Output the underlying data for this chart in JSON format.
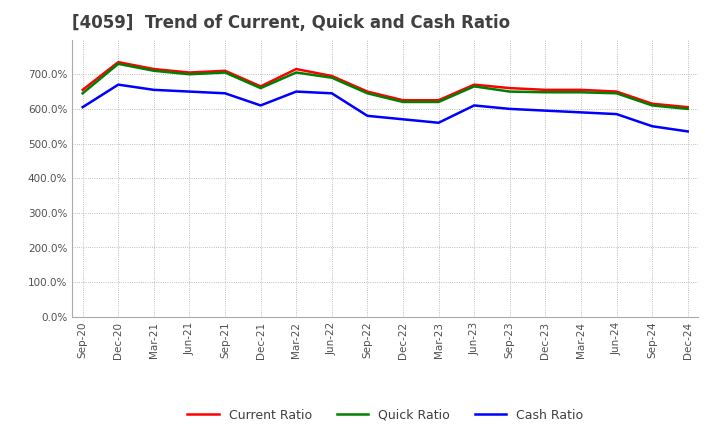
{
  "title": "[4059]  Trend of Current, Quick and Cash Ratio",
  "x_labels": [
    "Sep-20",
    "Dec-20",
    "Mar-21",
    "Jun-21",
    "Sep-21",
    "Dec-21",
    "Mar-22",
    "Jun-22",
    "Sep-22",
    "Dec-22",
    "Mar-23",
    "Jun-23",
    "Sep-23",
    "Dec-23",
    "Mar-24",
    "Jun-24",
    "Sep-24",
    "Dec-24"
  ],
  "current_ratio": [
    655,
    735,
    715,
    705,
    710,
    665,
    715,
    695,
    650,
    625,
    625,
    670,
    660,
    655,
    655,
    650,
    615,
    605
  ],
  "quick_ratio": [
    645,
    730,
    710,
    700,
    705,
    660,
    705,
    690,
    645,
    620,
    620,
    665,
    650,
    648,
    648,
    645,
    610,
    600
  ],
  "cash_ratio": [
    605,
    670,
    655,
    650,
    645,
    610,
    650,
    645,
    580,
    570,
    560,
    610,
    600,
    595,
    590,
    585,
    550,
    535
  ],
  "ylim": [
    0,
    800
  ],
  "yticks": [
    0,
    100,
    200,
    300,
    400,
    500,
    600,
    700
  ],
  "current_color": "#ff0000",
  "quick_color": "#008000",
  "cash_color": "#0000ff",
  "bg_color": "#ffffff",
  "grid_color": "#aaaaaa",
  "title_color": "#404040",
  "title_fontsize": 12,
  "line_width": 1.8
}
